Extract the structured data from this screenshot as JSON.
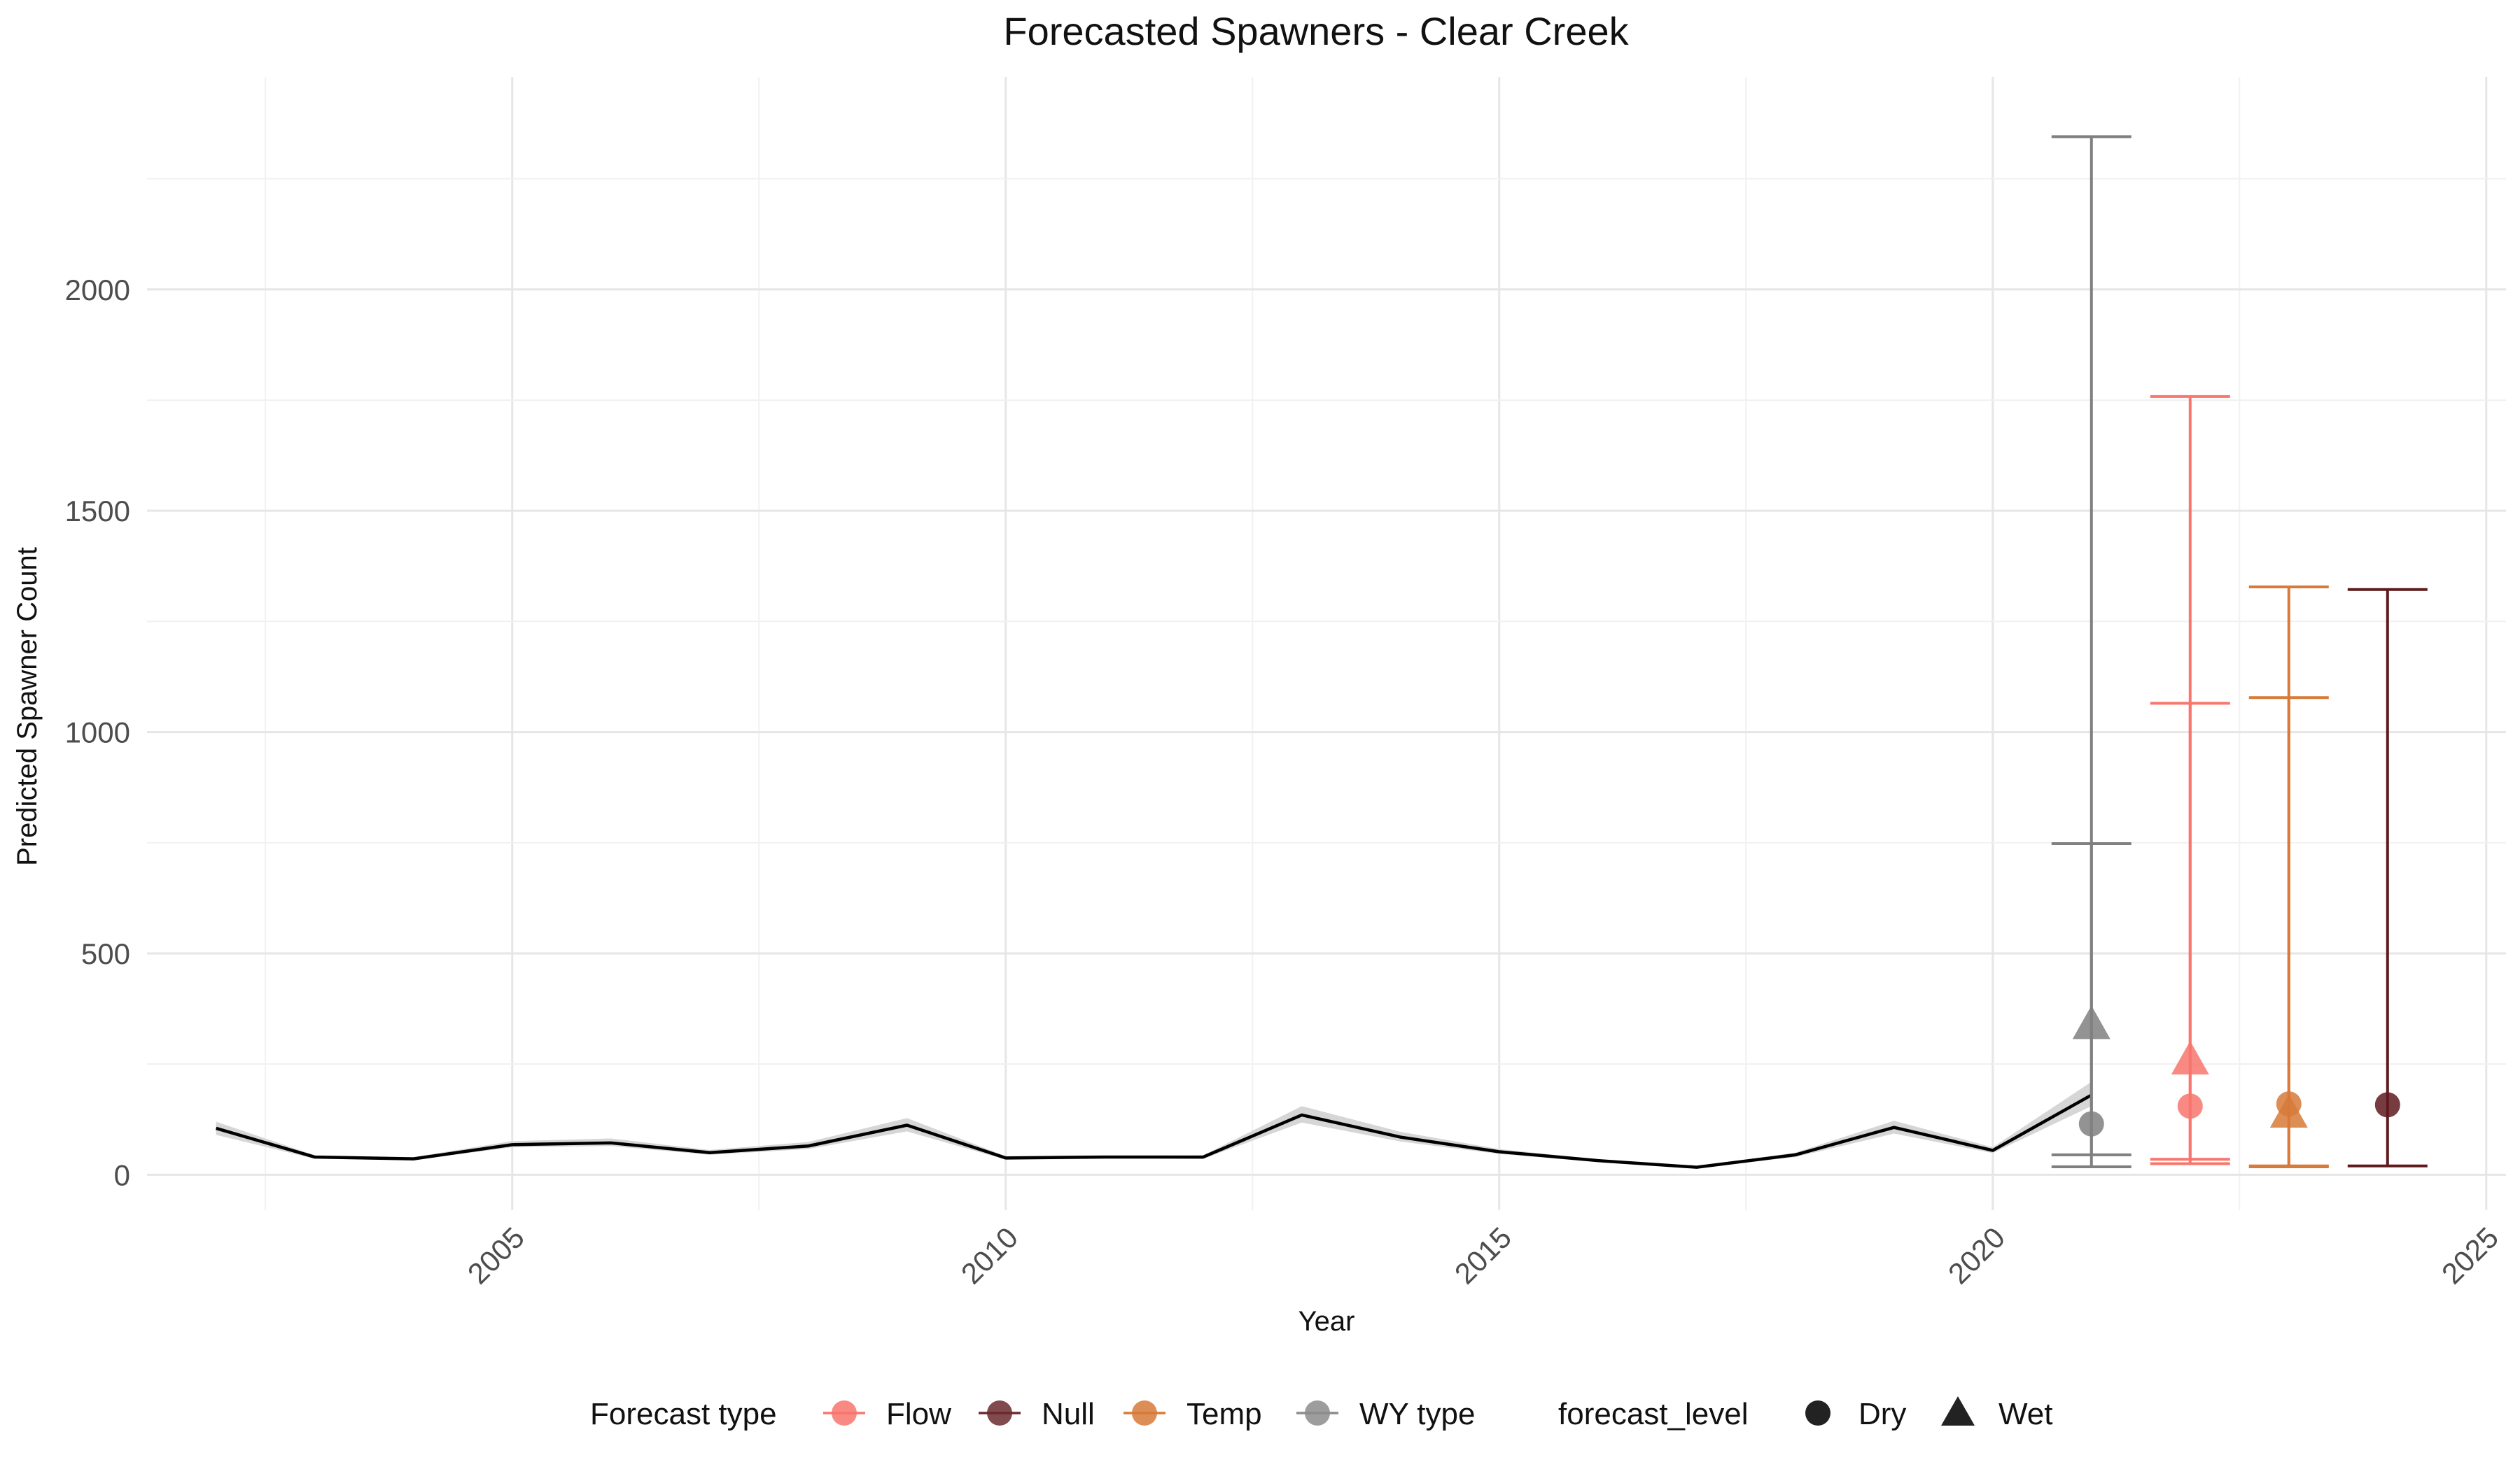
{
  "chart_data": {
    "type": "line",
    "title": "Forecasted Spawners - Clear Creek",
    "xlabel": "Year",
    "ylabel": "Predicted Spawner Count",
    "xlim": [
      2001.3,
      2025.2
    ],
    "ylim": [
      -80,
      2480
    ],
    "x_ticks": [
      2005,
      2010,
      2015,
      2020,
      2025
    ],
    "x_tick_labels": [
      "2005",
      "2010",
      "2015",
      "2020",
      "2025"
    ],
    "y_ticks": [
      0,
      500,
      1000,
      1500,
      2000
    ],
    "y_tick_labels": [
      "0",
      "500",
      "1000",
      "1500",
      "2000"
    ],
    "grid": true,
    "legend_position": "bottom",
    "observed": {
      "x": [
        2002,
        2003,
        2004,
        2005,
        2006,
        2007,
        2008,
        2009,
        2010,
        2011,
        2012,
        2013,
        2014,
        2015,
        2016,
        2017,
        2018,
        2019,
        2020,
        2021
      ],
      "y": [
        105,
        40,
        36,
        68,
        72,
        50,
        65,
        112,
        38,
        40,
        40,
        135,
        85,
        52,
        32,
        17,
        45,
        107,
        55,
        180
      ],
      "lower": [
        90,
        36,
        33,
        62,
        65,
        45,
        58,
        98,
        34,
        36,
        36,
        118,
        75,
        47,
        29,
        15,
        40,
        93,
        49,
        155
      ],
      "upper": [
        120,
        44,
        40,
        76,
        82,
        56,
        74,
        128,
        42,
        44,
        44,
        155,
        97,
        58,
        35,
        19,
        50,
        122,
        62,
        210
      ],
      "color": "#000000",
      "band_color": "#d6d6d6"
    },
    "forecasts": [
      {
        "type": "WY type",
        "level": "Dry",
        "x": 2021,
        "y": 115,
        "lower": 18,
        "upper": 748,
        "color": "#808080"
      },
      {
        "type": "WY type",
        "level": "Wet",
        "x": 2021,
        "y": 335,
        "lower": 45,
        "upper": 2345,
        "color": "#808080"
      },
      {
        "type": "Flow",
        "level": "Dry",
        "x": 2022,
        "y": 155,
        "lower": 25,
        "upper": 1065,
        "color": "#f8766d"
      },
      {
        "type": "Flow",
        "level": "Wet",
        "x": 2022,
        "y": 255,
        "lower": 35,
        "upper": 1758,
        "color": "#f8766d"
      },
      {
        "type": "Temp",
        "level": "Dry",
        "x": 2023,
        "y": 160,
        "lower": 18,
        "upper": 1078,
        "color": "#d77a3a"
      },
      {
        "type": "Temp",
        "level": "Wet",
        "x": 2023,
        "y": 135,
        "lower": 20,
        "upper": 1328,
        "color": "#d77a3a"
      },
      {
        "type": "Null",
        "level": "Dry",
        "x": 2024,
        "y": 158,
        "lower": 20,
        "upper": 1322,
        "color": "#5e1a1d"
      }
    ],
    "legend": {
      "color_title": "Forecast type",
      "color_items": [
        {
          "label": "Flow",
          "color": "#f8766d"
        },
        {
          "label": "Null",
          "color": "#6b2a2d"
        },
        {
          "label": "Temp",
          "color": "#d77a3a"
        },
        {
          "label": "WY type",
          "color": "#8c8c8c"
        }
      ],
      "shape_title": "forecast_level",
      "shape_items": [
        {
          "label": "Dry",
          "shape": "circle"
        },
        {
          "label": "Wet",
          "shape": "triangle"
        }
      ]
    }
  }
}
